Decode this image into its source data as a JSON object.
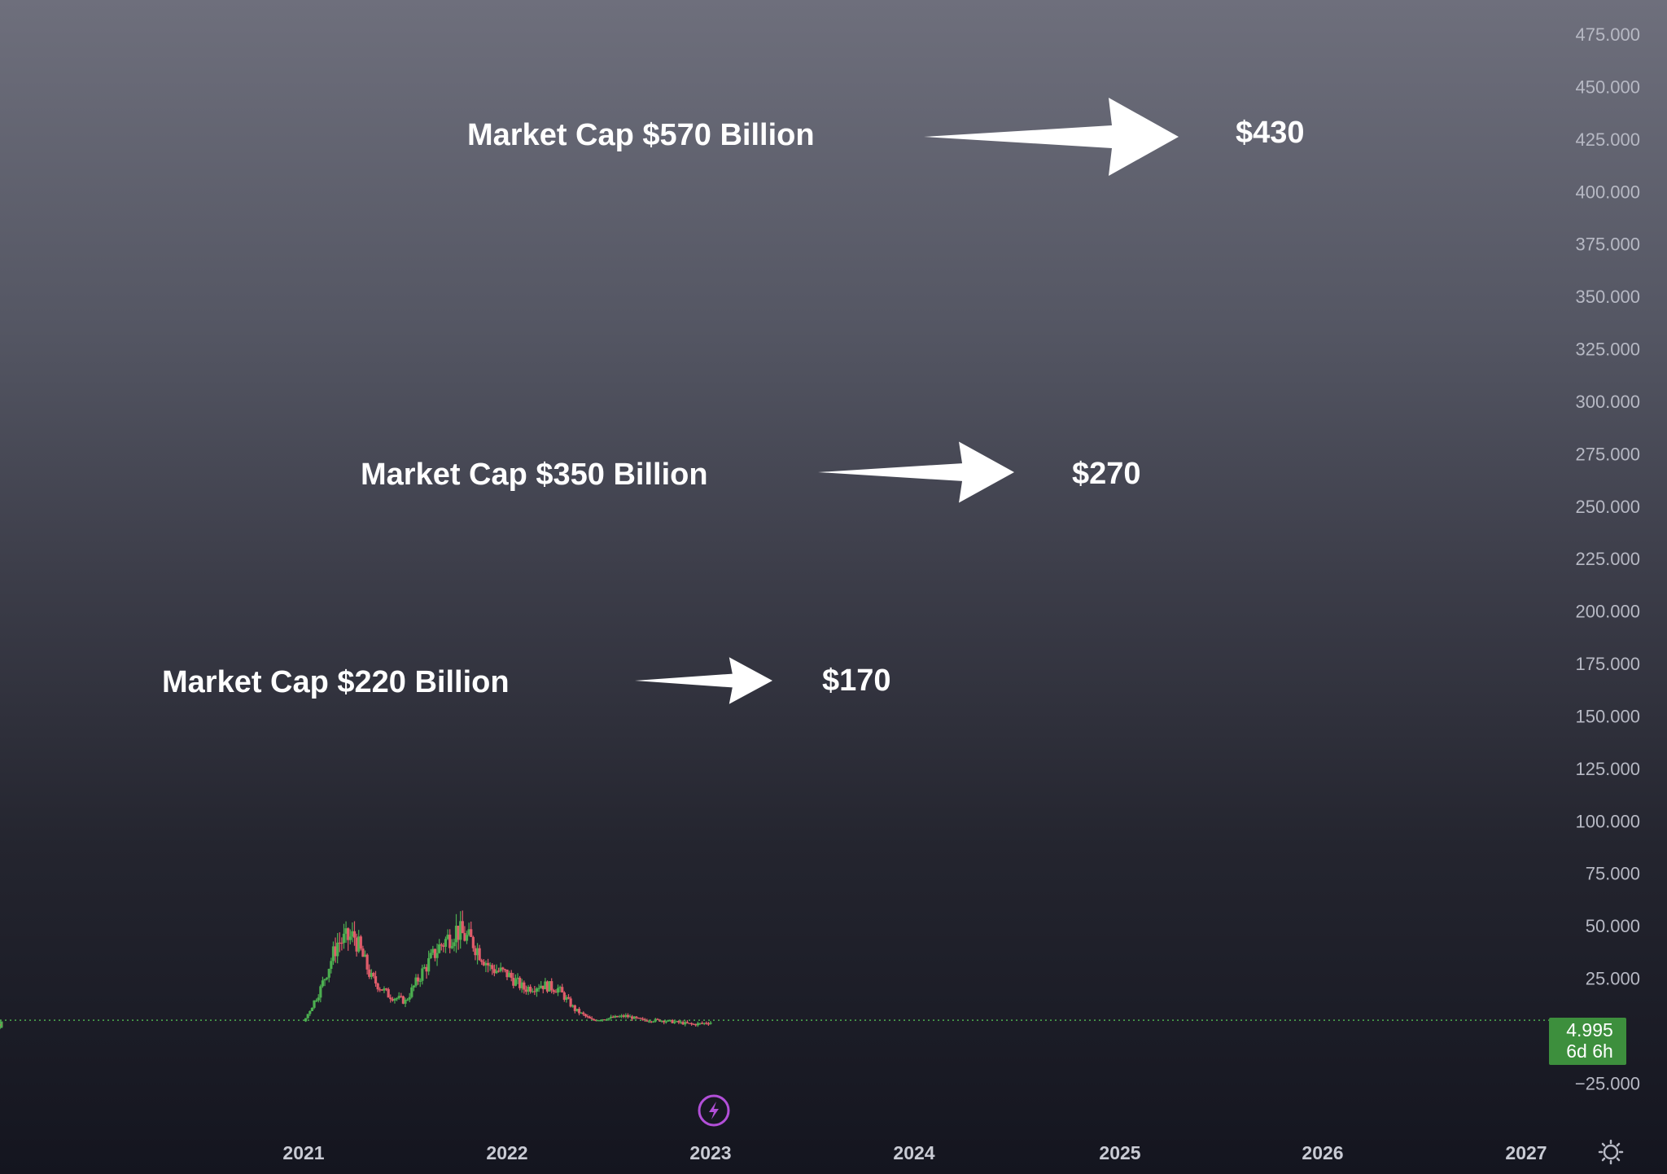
{
  "chart_data": {
    "type": "candlestick",
    "y_axis": {
      "ticks": [
        "475.000",
        "450.000",
        "425.000",
        "400.000",
        "375.000",
        "350.000",
        "325.000",
        "300.000",
        "275.000",
        "250.000",
        "225.000",
        "200.000",
        "175.000",
        "150.000",
        "125.000",
        "100.000",
        "75.000",
        "50.000",
        "25.000",
        "−25.000"
      ],
      "range": [
        -32,
        490
      ],
      "position": "right"
    },
    "x_axis": {
      "ticks": [
        "2021",
        "2022",
        "2023",
        "2024",
        "2025",
        "2026",
        "2027"
      ]
    },
    "current_price": {
      "value": "4.995",
      "countdown": "6d 6h",
      "color": "#3d8f3d"
    },
    "annotations": [
      {
        "label": "Market Cap $570 Billion",
        "target": "$430"
      },
      {
        "label": "Market Cap $350 Billion",
        "target": "$270"
      },
      {
        "label": "Market Cap $220 Billion",
        "target": "$170"
      }
    ],
    "series": [
      {
        "x": [
          "2020-08",
          "2020-09",
          "2020-10",
          "2020-11",
          "2020-12",
          "2021-01",
          "2021-02",
          "2021-03",
          "2021-04",
          "2021-05",
          "2021-06",
          "2021-07",
          "2021-08",
          "2021-09",
          "2021-10",
          "2021-11",
          "2021-12",
          "2022-01",
          "2022-02",
          "2022-03",
          "2022-04",
          "2022-05",
          "2022-06",
          "2022-07",
          "2022-08",
          "2022-09",
          "2022-10",
          "2022-11",
          "2022-12",
          "2023-01"
        ],
        "close": [
          3,
          4,
          3,
          2,
          3,
          4,
          20,
          42,
          45,
          25,
          17,
          14,
          28,
          40,
          48,
          42,
          30,
          27,
          20,
          22,
          20,
          10,
          5,
          6,
          7,
          5,
          5,
          4,
          3,
          4
        ],
        "up_color": "#4caf50",
        "down_color": "#e05c6a"
      }
    ],
    "grid": false,
    "colors": {
      "arrow": "#ffffff",
      "baseline": "#4caf50",
      "event_icon": "#b24fd8"
    },
    "icons": {
      "event": "lightning-bolt-icon",
      "settings": "gear-icon"
    }
  }
}
